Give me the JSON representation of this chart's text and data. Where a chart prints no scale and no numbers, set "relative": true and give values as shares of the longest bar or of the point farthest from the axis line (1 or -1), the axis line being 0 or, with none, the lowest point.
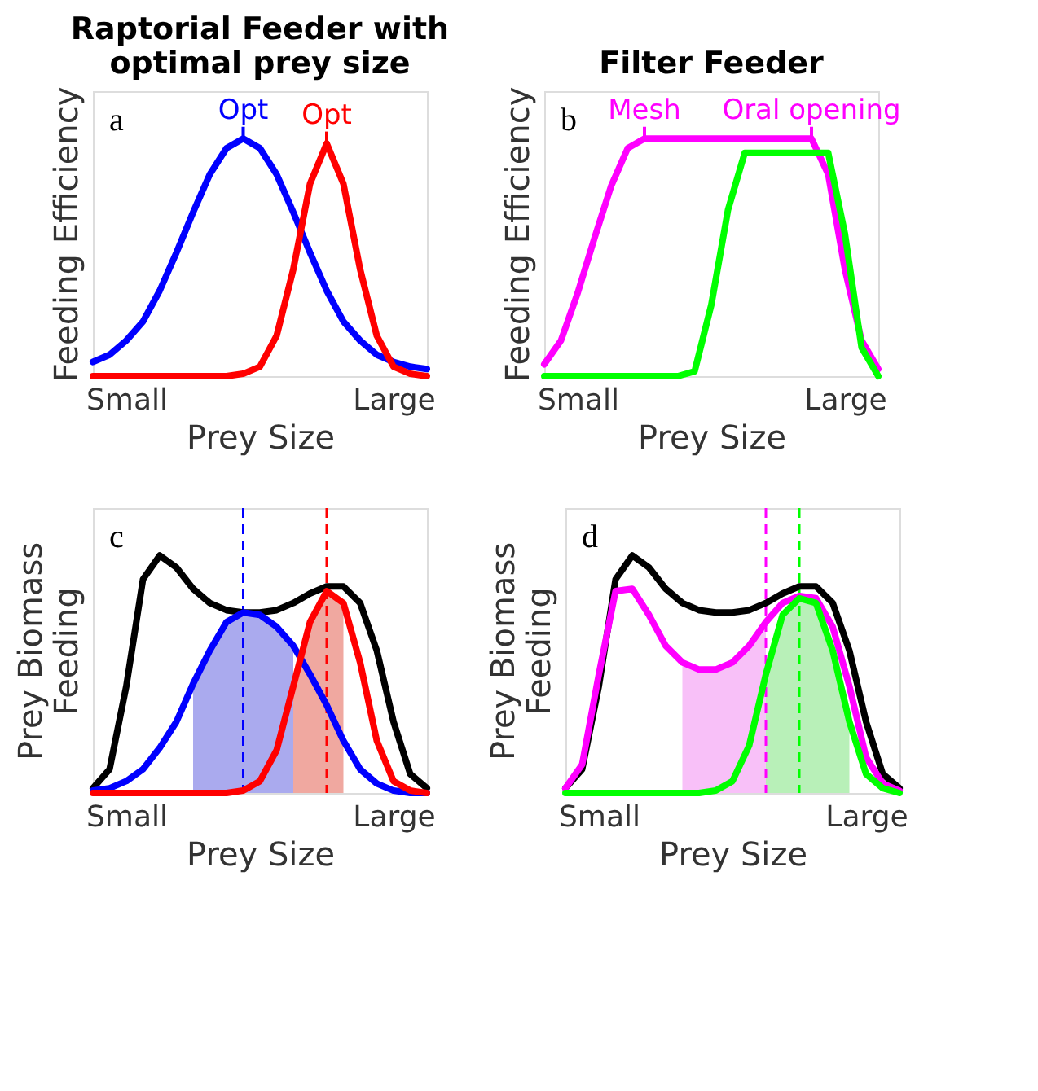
{
  "chart_data": [
    {
      "type": "line",
      "title": "Raptorial Feeder with optimal prey size",
      "ylabel": "Feeding Efficiency",
      "xlabel": "Prey Size",
      "relative": true,
      "categories": [
        null,
        null,
        "Small",
        null,
        null,
        null,
        null,
        null,
        null,
        null,
        null,
        null,
        null,
        null,
        null,
        null,
        null,
        null,
        "Large",
        null,
        null
      ],
      "tick_labels": "x",
      "grid": false,
      "line_style": "solid",
      "annotations": [
        "a",
        {
          "text": "Opt",
          "y": 1
        },
        {
          "text": "Opt",
          "y": 0.98
        }
      ],
      "series": [
        {
          "color": "#0000ff",
          "values": [
            0.06,
            0.09,
            0.15,
            0.23,
            0.36,
            0.52,
            0.69,
            0.85,
            0.96,
            1,
            0.96,
            0.85,
            0.69,
            0.52,
            0.36,
            0.23,
            0.15,
            0.09,
            0.06,
            0.04,
            0.03
          ]
        },
        {
          "color": "#ff0000",
          "values": [
            0,
            0,
            0,
            0,
            0,
            0,
            0,
            0,
            0,
            0.01,
            0.04,
            0.17,
            0.45,
            0.81,
            0.98,
            0.81,
            0.45,
            0.17,
            0.04,
            0.01,
            0
          ]
        }
      ]
    },
    {
      "type": "line",
      "title": "Filter Feeder",
      "ylabel": "Feeding Efficiency",
      "xlabel": "Prey Size",
      "relative": true,
      "categories": [
        null,
        null,
        "Small",
        null,
        null,
        null,
        null,
        null,
        null,
        null,
        null,
        null,
        null,
        null,
        null,
        null,
        null,
        null,
        "Large",
        null,
        null
      ],
      "tick_labels": "x",
      "grid": false,
      "line_style": "solid",
      "annotations": [
        "b",
        {
          "text": "Mesh",
          "y": 1
        },
        {
          "text": "Oral opening",
          "y": 1
        }
      ],
      "series": [
        {
          "color": "#ff00ff",
          "values": [
            0.05,
            0.15,
            0.35,
            0.58,
            0.8,
            0.96,
            1,
            1,
            1,
            1,
            1,
            1,
            1,
            1,
            1,
            1,
            1,
            0.85,
            0.45,
            0.15,
            0.03
          ]
        },
        {
          "color": "#00ff00",
          "values": [
            0,
            0,
            0,
            0,
            0,
            0,
            0,
            0,
            0,
            0.02,
            0.3,
            0.7,
            0.94,
            0.94,
            0.94,
            0.94,
            0.94,
            0.94,
            0.6,
            0.12,
            0
          ]
        }
      ]
    },
    {
      "type": "line",
      "ylabel": "Prey Biomass\nFeeding",
      "xlabel": "Prey Size",
      "relative": true,
      "categories": [
        null,
        null,
        "Small",
        null,
        null,
        null,
        null,
        null,
        null,
        null,
        null,
        null,
        null,
        null,
        null,
        null,
        null,
        null,
        "Large",
        null,
        null
      ],
      "tick_labels": "x",
      "grid": false,
      "line_style": "solid",
      "annotations": [
        "c"
      ],
      "series": [
        {
          "type": "area",
          "color": "#aaaaee",
          "values": [
            null,
            null,
            null,
            null,
            null,
            null,
            0.46,
            0.6,
            0.72,
            0.76,
            0.75,
            0.7,
            0.62,
            null,
            null,
            null,
            null,
            null,
            null,
            null,
            null
          ]
        },
        {
          "type": "area",
          "color": "#f0a8a0",
          "values": [
            null,
            null,
            null,
            null,
            null,
            null,
            null,
            null,
            null,
            null,
            null,
            null,
            0.45,
            0.72,
            0.85,
            0.8,
            null,
            null,
            null,
            null,
            null
          ]
        },
        {
          "color": "#000000",
          "values": [
            0.02,
            0.1,
            0.45,
            0.9,
            1,
            0.95,
            0.86,
            0.8,
            0.77,
            0.76,
            0.76,
            0.77,
            0.8,
            0.84,
            0.87,
            0.87,
            0.8,
            0.6,
            0.3,
            0.08,
            0.02
          ]
        },
        {
          "color": "#0000ff",
          "values": [
            0.01,
            0.02,
            0.05,
            0.1,
            0.19,
            0.3,
            0.46,
            0.6,
            0.72,
            0.76,
            0.75,
            0.7,
            0.62,
            0.5,
            0.37,
            0.22,
            0.1,
            0.04,
            0.01,
            0,
            0
          ]
        },
        {
          "color": "#ff0000",
          "values": [
            0,
            0,
            0,
            0,
            0,
            0,
            0,
            0,
            0,
            0.01,
            0.05,
            0.18,
            0.45,
            0.72,
            0.85,
            0.8,
            0.55,
            0.22,
            0.05,
            0.01,
            0
          ]
        }
      ]
    },
    {
      "type": "line",
      "ylabel": "Prey Biomass\nFeeding",
      "xlabel": "Prey Size",
      "relative": true,
      "categories": [
        null,
        null,
        "Small",
        null,
        null,
        null,
        null,
        null,
        null,
        null,
        null,
        null,
        null,
        null,
        null,
        null,
        null,
        null,
        "Large",
        null,
        null
      ],
      "tick_labels": "x",
      "grid": false,
      "line_style": "solid",
      "annotations": [
        "d"
      ],
      "series": [
        {
          "type": "area",
          "color": "#f8c0f8",
          "values": [
            null,
            null,
            null,
            null,
            null,
            null,
            null,
            0.55,
            0.52,
            0.52,
            0.55,
            0.62,
            0.72,
            null,
            null,
            null,
            null,
            null,
            null,
            null,
            null
          ]
        },
        {
          "type": "area",
          "color": "#b8f0b8",
          "values": [
            null,
            null,
            null,
            null,
            null,
            null,
            null,
            null,
            null,
            null,
            null,
            null,
            0.5,
            0.75,
            0.82,
            0.8,
            0.6,
            0.3,
            null,
            null,
            null
          ]
        },
        {
          "color": "#000000",
          "values": [
            0.02,
            0.1,
            0.45,
            0.9,
            1,
            0.95,
            0.86,
            0.8,
            0.77,
            0.76,
            0.76,
            0.77,
            0.8,
            0.84,
            0.87,
            0.87,
            0.8,
            0.6,
            0.3,
            0.08,
            0.02
          ]
        },
        {
          "color": "#ff00ff",
          "values": [
            0.02,
            0.12,
            0.5,
            0.85,
            0.86,
            0.75,
            0.62,
            0.55,
            0.52,
            0.52,
            0.55,
            0.62,
            0.72,
            0.8,
            0.83,
            0.82,
            0.7,
            0.45,
            0.15,
            0.04,
            0.01
          ]
        },
        {
          "color": "#00ff00",
          "values": [
            0,
            0,
            0,
            0,
            0,
            0,
            0,
            0,
            0,
            0.01,
            0.05,
            0.2,
            0.5,
            0.75,
            0.82,
            0.8,
            0.6,
            0.3,
            0.08,
            0.02,
            0
          ]
        }
      ]
    }
  ]
}
